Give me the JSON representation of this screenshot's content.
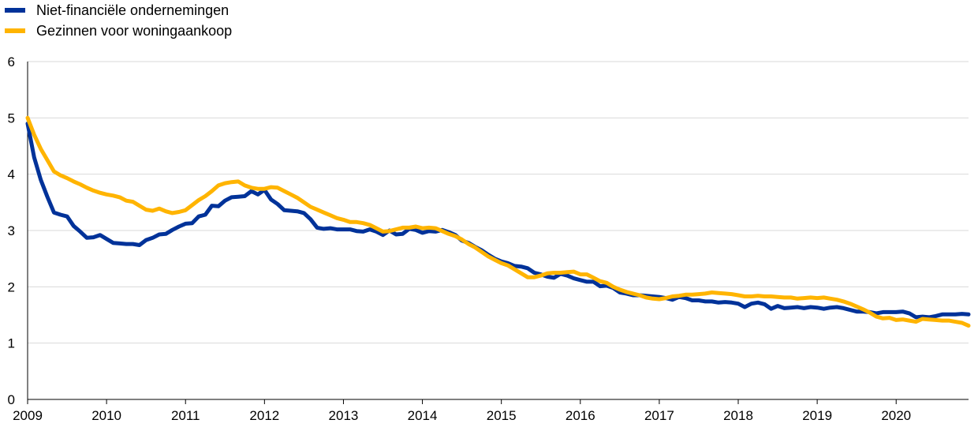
{
  "chart_data": {
    "type": "line",
    "title": "",
    "xlabel": "",
    "ylabel": "",
    "ylim": [
      0,
      6
    ],
    "xlim": [
      "2009-01",
      "2020-12"
    ],
    "yticks": [
      "0",
      "1",
      "2",
      "3",
      "4",
      "5",
      "6"
    ],
    "xticks": [
      "2009",
      "2010",
      "2011",
      "2012",
      "2013",
      "2014",
      "2015",
      "2016",
      "2017",
      "2018",
      "2019",
      "2020"
    ],
    "grid": "horizontal",
    "legend_position": "top-left",
    "series": [
      {
        "name": "Niet-financiële ondernemingen",
        "color": "#003299",
        "points": [
          [
            "2009-01",
            4.9
          ],
          [
            "2009-02",
            4.3
          ],
          [
            "2009-03",
            3.9
          ],
          [
            "2009-04",
            3.6
          ],
          [
            "2009-05",
            3.32
          ],
          [
            "2009-06",
            3.28
          ],
          [
            "2009-07",
            3.25
          ],
          [
            "2009-08",
            3.08
          ],
          [
            "2009-09",
            2.98
          ],
          [
            "2009-10",
            2.87
          ],
          [
            "2009-11",
            2.88
          ],
          [
            "2009-12",
            2.92
          ],
          [
            "2010-01",
            2.85
          ],
          [
            "2010-02",
            2.78
          ],
          [
            "2010-03",
            2.77
          ],
          [
            "2010-04",
            2.76
          ],
          [
            "2010-05",
            2.76
          ],
          [
            "2010-06",
            2.74
          ],
          [
            "2010-07",
            2.83
          ],
          [
            "2010-08",
            2.87
          ],
          [
            "2010-09",
            2.93
          ],
          [
            "2010-10",
            2.94
          ],
          [
            "2010-11",
            3.01
          ],
          [
            "2010-12",
            3.07
          ],
          [
            "2011-01",
            3.12
          ],
          [
            "2011-02",
            3.13
          ],
          [
            "2011-03",
            3.25
          ],
          [
            "2011-04",
            3.28
          ],
          [
            "2011-05",
            3.44
          ],
          [
            "2011-06",
            3.43
          ],
          [
            "2011-07",
            3.53
          ],
          [
            "2011-08",
            3.59
          ],
          [
            "2011-09",
            3.6
          ],
          [
            "2011-10",
            3.61
          ],
          [
            "2011-11",
            3.7
          ],
          [
            "2011-12",
            3.64
          ],
          [
            "2012-01",
            3.72
          ],
          [
            "2012-02",
            3.55
          ],
          [
            "2012-03",
            3.47
          ],
          [
            "2012-04",
            3.36
          ],
          [
            "2012-05",
            3.35
          ],
          [
            "2012-06",
            3.34
          ],
          [
            "2012-07",
            3.31
          ],
          [
            "2012-08",
            3.2
          ],
          [
            "2012-09",
            3.05
          ],
          [
            "2012-10",
            3.03
          ],
          [
            "2012-11",
            3.04
          ],
          [
            "2012-12",
            3.02
          ],
          [
            "2013-01",
            3.02
          ],
          [
            "2013-02",
            3.02
          ],
          [
            "2013-03",
            2.99
          ],
          [
            "2013-04",
            2.98
          ],
          [
            "2013-05",
            3.02
          ],
          [
            "2013-06",
            2.98
          ],
          [
            "2013-07",
            2.92
          ],
          [
            "2013-08",
            3.0
          ],
          [
            "2013-09",
            2.93
          ],
          [
            "2013-10",
            2.94
          ],
          [
            "2013-11",
            3.03
          ],
          [
            "2013-12",
            3.01
          ],
          [
            "2014-01",
            2.96
          ],
          [
            "2014-02",
            2.99
          ],
          [
            "2014-03",
            2.98
          ],
          [
            "2014-04",
            3.01
          ],
          [
            "2014-05",
            2.97
          ],
          [
            "2014-06",
            2.92
          ],
          [
            "2014-07",
            2.82
          ],
          [
            "2014-08",
            2.78
          ],
          [
            "2014-09",
            2.71
          ],
          [
            "2014-10",
            2.65
          ],
          [
            "2014-11",
            2.57
          ],
          [
            "2014-12",
            2.5
          ],
          [
            "2015-01",
            2.45
          ],
          [
            "2015-02",
            2.42
          ],
          [
            "2015-03",
            2.37
          ],
          [
            "2015-04",
            2.36
          ],
          [
            "2015-05",
            2.33
          ],
          [
            "2015-06",
            2.25
          ],
          [
            "2015-07",
            2.22
          ],
          [
            "2015-08",
            2.18
          ],
          [
            "2015-09",
            2.16
          ],
          [
            "2015-10",
            2.23
          ],
          [
            "2015-11",
            2.2
          ],
          [
            "2015-12",
            2.15
          ],
          [
            "2016-01",
            2.12
          ],
          [
            "2016-02",
            2.09
          ],
          [
            "2016-03",
            2.09
          ],
          [
            "2016-04",
            2.01
          ],
          [
            "2016-05",
            2.02
          ],
          [
            "2016-06",
            1.98
          ],
          [
            "2016-07",
            1.9
          ],
          [
            "2016-08",
            1.88
          ],
          [
            "2016-09",
            1.85
          ],
          [
            "2016-10",
            1.85
          ],
          [
            "2016-11",
            1.84
          ],
          [
            "2016-12",
            1.83
          ],
          [
            "2017-01",
            1.82
          ],
          [
            "2017-02",
            1.8
          ],
          [
            "2017-03",
            1.77
          ],
          [
            "2017-04",
            1.82
          ],
          [
            "2017-05",
            1.8
          ],
          [
            "2017-06",
            1.76
          ],
          [
            "2017-07",
            1.76
          ],
          [
            "2017-08",
            1.74
          ],
          [
            "2017-09",
            1.74
          ],
          [
            "2017-10",
            1.72
          ],
          [
            "2017-11",
            1.73
          ],
          [
            "2017-12",
            1.72
          ],
          [
            "2018-01",
            1.7
          ],
          [
            "2018-02",
            1.64
          ],
          [
            "2018-03",
            1.7
          ],
          [
            "2018-04",
            1.72
          ],
          [
            "2018-05",
            1.69
          ],
          [
            "2018-06",
            1.61
          ],
          [
            "2018-07",
            1.66
          ],
          [
            "2018-08",
            1.62
          ],
          [
            "2018-09",
            1.63
          ],
          [
            "2018-10",
            1.64
          ],
          [
            "2018-11",
            1.62
          ],
          [
            "2018-12",
            1.64
          ],
          [
            "2019-01",
            1.63
          ],
          [
            "2019-02",
            1.61
          ],
          [
            "2019-03",
            1.63
          ],
          [
            "2019-04",
            1.64
          ],
          [
            "2019-05",
            1.62
          ],
          [
            "2019-06",
            1.59
          ],
          [
            "2019-07",
            1.56
          ],
          [
            "2019-08",
            1.56
          ],
          [
            "2019-09",
            1.55
          ],
          [
            "2019-10",
            1.53
          ],
          [
            "2019-11",
            1.55
          ],
          [
            "2019-12",
            1.55
          ],
          [
            "2020-01",
            1.55
          ],
          [
            "2020-02",
            1.56
          ],
          [
            "2020-03",
            1.53
          ],
          [
            "2020-04",
            1.46
          ],
          [
            "2020-05",
            1.47
          ],
          [
            "2020-06",
            1.46
          ],
          [
            "2020-07",
            1.48
          ],
          [
            "2020-08",
            1.51
          ],
          [
            "2020-09",
            1.51
          ],
          [
            "2020-10",
            1.51
          ],
          [
            "2020-11",
            1.52
          ],
          [
            "2020-12",
            1.51
          ]
        ]
      },
      {
        "name": "Gezinnen voor woningaankoop",
        "color": "#FFB400",
        "points": [
          [
            "2009-01",
            5.0
          ],
          [
            "2009-02",
            4.7
          ],
          [
            "2009-03",
            4.45
          ],
          [
            "2009-04",
            4.25
          ],
          [
            "2009-05",
            4.05
          ],
          [
            "2009-06",
            3.98
          ],
          [
            "2009-07",
            3.93
          ],
          [
            "2009-08",
            3.87
          ],
          [
            "2009-09",
            3.82
          ],
          [
            "2009-10",
            3.76
          ],
          [
            "2009-11",
            3.71
          ],
          [
            "2009-12",
            3.67
          ],
          [
            "2010-01",
            3.64
          ],
          [
            "2010-02",
            3.62
          ],
          [
            "2010-03",
            3.59
          ],
          [
            "2010-04",
            3.53
          ],
          [
            "2010-05",
            3.51
          ],
          [
            "2010-06",
            3.44
          ],
          [
            "2010-07",
            3.37
          ],
          [
            "2010-08",
            3.35
          ],
          [
            "2010-09",
            3.39
          ],
          [
            "2010-10",
            3.34
          ],
          [
            "2010-11",
            3.31
          ],
          [
            "2010-12",
            3.33
          ],
          [
            "2011-01",
            3.36
          ],
          [
            "2011-02",
            3.45
          ],
          [
            "2011-03",
            3.54
          ],
          [
            "2011-04",
            3.61
          ],
          [
            "2011-05",
            3.7
          ],
          [
            "2011-06",
            3.8
          ],
          [
            "2011-07",
            3.84
          ],
          [
            "2011-08",
            3.86
          ],
          [
            "2011-09",
            3.87
          ],
          [
            "2011-10",
            3.8
          ],
          [
            "2011-11",
            3.76
          ],
          [
            "2011-12",
            3.74
          ],
          [
            "2012-01",
            3.74
          ],
          [
            "2012-02",
            3.77
          ],
          [
            "2012-03",
            3.76
          ],
          [
            "2012-04",
            3.7
          ],
          [
            "2012-05",
            3.64
          ],
          [
            "2012-06",
            3.58
          ],
          [
            "2012-07",
            3.5
          ],
          [
            "2012-08",
            3.42
          ],
          [
            "2012-09",
            3.37
          ],
          [
            "2012-10",
            3.32
          ],
          [
            "2012-11",
            3.27
          ],
          [
            "2012-12",
            3.22
          ],
          [
            "2013-01",
            3.19
          ],
          [
            "2013-02",
            3.15
          ],
          [
            "2013-03",
            3.15
          ],
          [
            "2013-04",
            3.13
          ],
          [
            "2013-05",
            3.1
          ],
          [
            "2013-06",
            3.04
          ],
          [
            "2013-07",
            2.98
          ],
          [
            "2013-08",
            2.99
          ],
          [
            "2013-09",
            3.02
          ],
          [
            "2013-10",
            3.05
          ],
          [
            "2013-11",
            3.05
          ],
          [
            "2013-12",
            3.07
          ],
          [
            "2014-01",
            3.04
          ],
          [
            "2014-02",
            3.05
          ],
          [
            "2014-03",
            3.04
          ],
          [
            "2014-04",
            2.99
          ],
          [
            "2014-05",
            2.94
          ],
          [
            "2014-06",
            2.9
          ],
          [
            "2014-07",
            2.84
          ],
          [
            "2014-08",
            2.76
          ],
          [
            "2014-09",
            2.7
          ],
          [
            "2014-10",
            2.62
          ],
          [
            "2014-11",
            2.54
          ],
          [
            "2014-12",
            2.48
          ],
          [
            "2015-01",
            2.42
          ],
          [
            "2015-02",
            2.38
          ],
          [
            "2015-03",
            2.31
          ],
          [
            "2015-04",
            2.24
          ],
          [
            "2015-05",
            2.17
          ],
          [
            "2015-06",
            2.17
          ],
          [
            "2015-07",
            2.2
          ],
          [
            "2015-08",
            2.24
          ],
          [
            "2015-09",
            2.25
          ],
          [
            "2015-10",
            2.25
          ],
          [
            "2015-11",
            2.26
          ],
          [
            "2015-12",
            2.27
          ],
          [
            "2016-01",
            2.22
          ],
          [
            "2016-02",
            2.22
          ],
          [
            "2016-03",
            2.16
          ],
          [
            "2016-04",
            2.1
          ],
          [
            "2016-05",
            2.07
          ],
          [
            "2016-06",
            2.0
          ],
          [
            "2016-07",
            1.95
          ],
          [
            "2016-08",
            1.91
          ],
          [
            "2016-09",
            1.88
          ],
          [
            "2016-10",
            1.85
          ],
          [
            "2016-11",
            1.81
          ],
          [
            "2016-12",
            1.79
          ],
          [
            "2017-01",
            1.78
          ],
          [
            "2017-02",
            1.8
          ],
          [
            "2017-03",
            1.83
          ],
          [
            "2017-04",
            1.84
          ],
          [
            "2017-05",
            1.86
          ],
          [
            "2017-06",
            1.86
          ],
          [
            "2017-07",
            1.87
          ],
          [
            "2017-08",
            1.88
          ],
          [
            "2017-09",
            1.9
          ],
          [
            "2017-10",
            1.89
          ],
          [
            "2017-11",
            1.88
          ],
          [
            "2017-12",
            1.87
          ],
          [
            "2018-01",
            1.85
          ],
          [
            "2018-02",
            1.83
          ],
          [
            "2018-03",
            1.83
          ],
          [
            "2018-04",
            1.84
          ],
          [
            "2018-05",
            1.83
          ],
          [
            "2018-06",
            1.83
          ],
          [
            "2018-07",
            1.82
          ],
          [
            "2018-08",
            1.81
          ],
          [
            "2018-09",
            1.81
          ],
          [
            "2018-10",
            1.79
          ],
          [
            "2018-11",
            1.8
          ],
          [
            "2018-12",
            1.81
          ],
          [
            "2019-01",
            1.8
          ],
          [
            "2019-02",
            1.81
          ],
          [
            "2019-03",
            1.79
          ],
          [
            "2019-04",
            1.77
          ],
          [
            "2019-05",
            1.74
          ],
          [
            "2019-06",
            1.7
          ],
          [
            "2019-07",
            1.65
          ],
          [
            "2019-08",
            1.6
          ],
          [
            "2019-09",
            1.54
          ],
          [
            "2019-10",
            1.47
          ],
          [
            "2019-11",
            1.44
          ],
          [
            "2019-12",
            1.45
          ],
          [
            "2020-01",
            1.41
          ],
          [
            "2020-02",
            1.42
          ],
          [
            "2020-03",
            1.4
          ],
          [
            "2020-04",
            1.38
          ],
          [
            "2020-05",
            1.43
          ],
          [
            "2020-06",
            1.42
          ],
          [
            "2020-07",
            1.41
          ],
          [
            "2020-08",
            1.4
          ],
          [
            "2020-09",
            1.4
          ],
          [
            "2020-10",
            1.38
          ],
          [
            "2020-11",
            1.36
          ],
          [
            "2020-12",
            1.31
          ]
        ]
      }
    ]
  }
}
